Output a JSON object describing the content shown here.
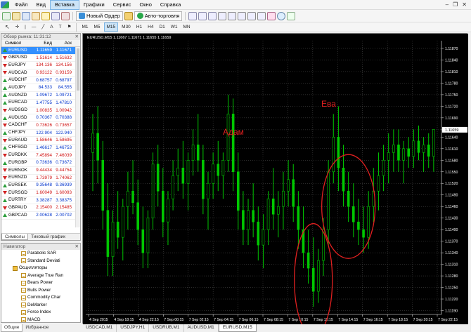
{
  "menubar": {
    "items": [
      "Файл",
      "Вид",
      "Вставка",
      "Графики",
      "Сервис",
      "Окно",
      "Справка"
    ],
    "active": "Вставка"
  },
  "toolbar": {
    "new_order": "Новый Ордер",
    "auto_trading": "Авто-торговля"
  },
  "timeframes": [
    "M1",
    "M5",
    "M15",
    "M30",
    "H1",
    "H4",
    "D1",
    "W1",
    "MN"
  ],
  "timeframe_active": "M15",
  "market_watch": {
    "title": "Обзор рынка: 11:31:12",
    "columns": [
      "Символ",
      "Бид",
      "Аск"
    ],
    "rows": [
      {
        "symbol": "EURUSD",
        "bid": "1.11659",
        "ask": "1.11671",
        "dir": "up",
        "selected": true
      },
      {
        "symbol": "GBPUSD",
        "bid": "1.51614",
        "ask": "1.51632",
        "dir": "down"
      },
      {
        "symbol": "EURJPY",
        "bid": "134.136",
        "ask": "134.156",
        "dir": "down"
      },
      {
        "symbol": "AUDCAD",
        "bid": "0.93122",
        "ask": "0.93159",
        "dir": "down"
      },
      {
        "symbol": "AUDCHF",
        "bid": "0.68757",
        "ask": "0.68797",
        "dir": "up"
      },
      {
        "symbol": "AUDJPY",
        "bid": "84.533",
        "ask": "84.555",
        "dir": "up"
      },
      {
        "symbol": "AUDNZD",
        "bid": "1.09672",
        "ask": "1.09721",
        "dir": "up"
      },
      {
        "symbol": "EURCAD",
        "bid": "1.47755",
        "ask": "1.47810",
        "dir": "up"
      },
      {
        "symbol": "AUDSGD",
        "bid": "1.00835",
        "ask": "1.00942",
        "dir": "down"
      },
      {
        "symbol": "AUDUSD",
        "bid": "0.70367",
        "ask": "0.70388",
        "dir": "up"
      },
      {
        "symbol": "CADCHF",
        "bid": "0.73626",
        "ask": "0.73657",
        "dir": "down"
      },
      {
        "symbol": "CHFJPY",
        "bid": "122.904",
        "ask": "122.940",
        "dir": "up"
      },
      {
        "symbol": "EURAUD",
        "bid": "1.58646",
        "ask": "1.58695",
        "dir": "down"
      },
      {
        "symbol": "CHFSGD",
        "bid": "1.46617",
        "ask": "1.46753",
        "dir": "up"
      },
      {
        "symbol": "EURDKK",
        "bid": "7.45894",
        "ask": "7.46039",
        "dir": "down"
      },
      {
        "symbol": "EURGBP",
        "bid": "0.73636",
        "ask": "0.73672",
        "dir": "up"
      },
      {
        "symbol": "EURNOK",
        "bid": "9.44434",
        "ask": "9.44754",
        "dir": "down"
      },
      {
        "symbol": "EURNZD",
        "bid": "1.73979",
        "ask": "1.74062",
        "dir": "down"
      },
      {
        "symbol": "EURSEK",
        "bid": "9.35648",
        "ask": "9.36939",
        "dir": "up"
      },
      {
        "symbol": "EURSGD",
        "bid": "1.60049",
        "ask": "1.60093",
        "dir": "down"
      },
      {
        "symbol": "EURTRY",
        "bid": "3.38287",
        "ask": "3.38375",
        "dir": "up"
      },
      {
        "symbol": "GBPAUD",
        "bid": "2.15400",
        "ask": "2.15485",
        "dir": "down"
      },
      {
        "symbol": "GBPCAD",
        "bid": "2.00628",
        "ask": "2.00702",
        "dir": "up"
      }
    ],
    "tabs": [
      "Символы",
      "Тиковый график"
    ]
  },
  "navigator": {
    "title": "Навигатор",
    "items": [
      {
        "label": "Parabolic SAR",
        "indent": 2,
        "kind": "ind"
      },
      {
        "label": "Standard Deviati",
        "indent": 2,
        "kind": "ind"
      },
      {
        "label": "Осцилляторы",
        "indent": 1,
        "kind": "folder"
      },
      {
        "label": "Average True Ran",
        "indent": 2,
        "kind": "ind"
      },
      {
        "label": "Bears Power",
        "indent": 2,
        "kind": "ind"
      },
      {
        "label": "Bulls Power",
        "indent": 2,
        "kind": "ind"
      },
      {
        "label": "Commodity Char",
        "indent": 2,
        "kind": "ind"
      },
      {
        "label": "DeMarker",
        "indent": 2,
        "kind": "ind"
      },
      {
        "label": "Force Index",
        "indent": 2,
        "kind": "ind"
      },
      {
        "label": "MACD",
        "indent": 2,
        "kind": "ind"
      }
    ],
    "tabs": [
      "Общие",
      "Избранное"
    ]
  },
  "chart": {
    "header": "EURUSD,M15  1.11667 1.11671 1.11655 1.11659",
    "annotations": [
      "Адам",
      "Ева"
    ],
    "current_price": "1.11659",
    "tabs": [
      "USDCAD,M1",
      "USDJPY,H1",
      "USDRUB,M1",
      "AUDUSD,M1",
      "EURUSD,M15"
    ],
    "tab_active": "EURUSD,M15"
  },
  "chart_data": {
    "type": "candlestick",
    "title": "EURUSD,M15",
    "y_ticks": [
      "1.11870",
      "1.11840",
      "1.11810",
      "1.11780",
      "1.11750",
      "1.11720",
      "1.11690",
      "1.11659",
      "1.11640",
      "1.11610",
      "1.11580",
      "1.11550",
      "1.11520",
      "1.11490",
      "1.11460",
      "1.11430",
      "1.11400",
      "1.11370",
      "1.11340",
      "1.11310",
      "1.11280",
      "1.11250",
      "1.11220",
      "1.11190"
    ],
    "x_ticks": [
      "4 Sep 2015",
      "4 Sep 18:15",
      "4 Sep 22:15",
      "7 Sep 00:15",
      "7 Sep 02:15",
      "7 Sep 04:15",
      "7 Sep 06:15",
      "7 Sep 08:15",
      "7 Sep 10:15",
      "7 Sep 12:15",
      "7 Sep 14:15",
      "7 Sep 16:15",
      "7 Sep 18:15",
      "7 Sep 20:15",
      "7 Sep 22:15"
    ],
    "ylim": [
      1.1118,
      1.1189
    ],
    "ohlc_approx": [
      [
        1.116,
        1.117,
        1.115,
        1.1165
      ],
      [
        1.1165,
        1.1172,
        1.1152,
        1.1158
      ],
      [
        1.1158,
        1.1163,
        1.114,
        1.1145
      ],
      [
        1.1145,
        1.1152,
        1.1128,
        1.1133
      ],
      [
        1.1133,
        1.1145,
        1.1128,
        1.1142
      ],
      [
        1.1142,
        1.115,
        1.1135,
        1.1138
      ],
      [
        1.1138,
        1.1148,
        1.1132,
        1.1146
      ],
      [
        1.1146,
        1.1155,
        1.114,
        1.115
      ],
      [
        1.115,
        1.1158,
        1.1144,
        1.1147
      ],
      [
        1.1147,
        1.1153,
        1.1136,
        1.114
      ],
      [
        1.114,
        1.1146,
        1.113,
        1.1134
      ],
      [
        1.1134,
        1.1145,
        1.113,
        1.1143
      ],
      [
        1.1143,
        1.116,
        1.114,
        1.1157
      ],
      [
        1.1157,
        1.1162,
        1.1146,
        1.115
      ],
      [
        1.115,
        1.1156,
        1.1138,
        1.1142
      ],
      [
        1.1142,
        1.115,
        1.1136,
        1.1148
      ],
      [
        1.1148,
        1.1158,
        1.1145,
        1.1154
      ],
      [
        1.1154,
        1.1161,
        1.115,
        1.1156
      ],
      [
        1.1156,
        1.1163,
        1.1148,
        1.1152
      ],
      [
        1.1152,
        1.116,
        1.1145,
        1.1158
      ],
      [
        1.1158,
        1.1166,
        1.1154,
        1.1162
      ],
      [
        1.1162,
        1.117,
        1.1155,
        1.1158
      ],
      [
        1.1158,
        1.1162,
        1.1144,
        1.1148
      ],
      [
        1.1148,
        1.1155,
        1.114,
        1.1152
      ],
      [
        1.1152,
        1.116,
        1.1148,
        1.1157
      ],
      [
        1.1157,
        1.1163,
        1.115,
        1.1154
      ],
      [
        1.1154,
        1.116,
        1.1148,
        1.1158
      ],
      [
        1.1158,
        1.1175,
        1.1155,
        1.117
      ],
      [
        1.117,
        1.1174,
        1.115,
        1.1155
      ],
      [
        1.1155,
        1.116,
        1.114,
        1.1145
      ],
      [
        1.1145,
        1.115,
        1.1136,
        1.114
      ],
      [
        1.114,
        1.1148,
        1.1136,
        1.1145
      ],
      [
        1.1145,
        1.1152,
        1.1138,
        1.1142
      ],
      [
        1.1142,
        1.1146,
        1.1132,
        1.1136
      ],
      [
        1.1136,
        1.1144,
        1.113,
        1.114
      ],
      [
        1.114,
        1.115,
        1.1136,
        1.1148
      ],
      [
        1.1148,
        1.1156,
        1.114,
        1.1144
      ],
      [
        1.1144,
        1.115,
        1.1138,
        1.1146
      ],
      [
        1.1146,
        1.1155,
        1.114,
        1.115
      ],
      [
        1.115,
        1.1158,
        1.1146,
        1.1153
      ],
      [
        1.1153,
        1.1157,
        1.1142,
        1.1146
      ],
      [
        1.1146,
        1.115,
        1.1135,
        1.114
      ],
      [
        1.114,
        1.1146,
        1.113,
        1.1134
      ],
      [
        1.1134,
        1.114,
        1.1126,
        1.113
      ],
      [
        1.113,
        1.1138,
        1.112,
        1.1124
      ],
      [
        1.1124,
        1.1135,
        1.1121,
        1.1132
      ],
      [
        1.1132,
        1.1143,
        1.1128,
        1.114
      ],
      [
        1.114,
        1.1158,
        1.1136,
        1.1155
      ],
      [
        1.1155,
        1.117,
        1.1152,
        1.1164
      ],
      [
        1.1164,
        1.1172,
        1.115,
        1.1156
      ],
      [
        1.1156,
        1.1162,
        1.1146,
        1.115
      ],
      [
        1.115,
        1.1155,
        1.1142,
        1.1146
      ],
      [
        1.1146,
        1.1152,
        1.1138,
        1.1142
      ],
      [
        1.1142,
        1.1148,
        1.1136,
        1.114
      ],
      [
        1.114,
        1.1146,
        1.1134,
        1.1138
      ],
      [
        1.1138,
        1.115,
        1.1135,
        1.1146
      ],
      [
        1.1146,
        1.1156,
        1.1142,
        1.115
      ],
      [
        1.115,
        1.116,
        1.1145,
        1.1154
      ],
      [
        1.1154,
        1.1162,
        1.115,
        1.1158
      ],
      [
        1.1158,
        1.1165,
        1.1152,
        1.116
      ],
      [
        1.116,
        1.1166,
        1.1155,
        1.1162
      ],
      [
        1.1162,
        1.1166,
        1.1155,
        1.1158
      ],
      [
        1.1158,
        1.1163,
        1.1152,
        1.1161
      ],
      [
        1.1161,
        1.1164,
        1.1156,
        1.1159
      ],
      [
        1.1159,
        1.1166,
        1.1156,
        1.1163
      ],
      [
        1.1163,
        1.1167,
        1.1158,
        1.116
      ],
      [
        1.116,
        1.1164,
        1.1155,
        1.1162
      ],
      [
        1.1162,
        1.1165,
        1.1156,
        1.1159
      ],
      [
        1.1159,
        1.1164,
        1.1155,
        1.1166
      ]
    ]
  },
  "colors": {
    "chart_bg": "#000000",
    "bull": "#00c800",
    "bear": "#00c800",
    "circle": "#e02020",
    "annotation": "#e02020",
    "grid": "#555555",
    "text": "#ffffff"
  }
}
